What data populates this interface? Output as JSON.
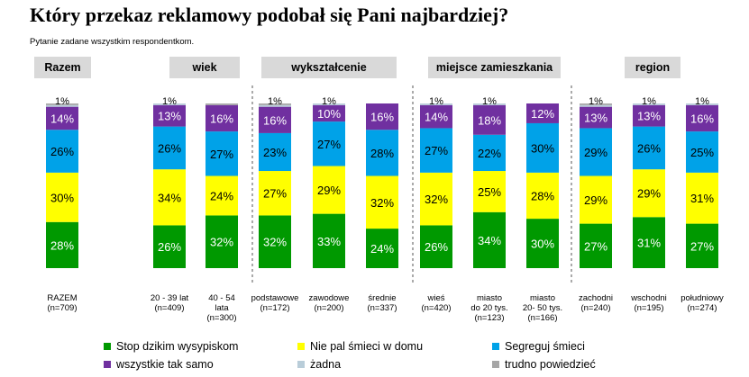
{
  "title": "Który przekaz reklamowy podobał się Pani najbardziej?",
  "subtitle": "Pytanie zadane wszystkim respondentkom.",
  "groups": [
    "Razem",
    "wiek",
    "wykształcenie",
    "miejsce zamieszkania",
    "region"
  ],
  "colors": {
    "stop": "#009900",
    "nie_pal": "#ffff00",
    "segreguj": "#00a2e8",
    "wszystkie": "#7030a0",
    "zadna": "#b9cdd9",
    "trudno": "#a6a6a6"
  },
  "chart_data": {
    "type": "bar",
    "stacked": true,
    "categories": [
      "RAZEM (n=709)",
      "20 - 39 lat (n=409)",
      "40 - 54 lata (n=300)",
      "podstawowe (n=172)",
      "zawodowe (n=200)",
      "średnie (n=337)",
      "wieś (n=420)",
      "miasto do 20 tys. (n=123)",
      "miasto 20- 50 tys. (n=166)",
      "zachodni (n=240)",
      "wschodni (n=195)",
      "południowy (n=274)"
    ],
    "category_lines": [
      [
        "RAZEM",
        "(n=709)"
      ],
      [
        "20 - 39 lat",
        "(n=409)"
      ],
      [
        "40 - 54",
        "lata",
        "(n=300)"
      ],
      [
        "podstawowe",
        "(n=172)"
      ],
      [
        "zawodowe",
        "(n=200)"
      ],
      [
        "średnie",
        "(n=337)"
      ],
      [
        "wieś",
        "(n=420)"
      ],
      [
        "miasto",
        "do 20 tys.",
        "(n=123)"
      ],
      [
        "miasto",
        "20- 50 tys.",
        "(n=166)"
      ],
      [
        "zachodni",
        "(n=240)"
      ],
      [
        "wschodni",
        "(n=195)"
      ],
      [
        "południowy",
        "(n=274)"
      ]
    ],
    "series": [
      {
        "name": "Stop dzikim wysypiskom",
        "key": "stop",
        "values": [
          28,
          26,
          32,
          32,
          33,
          24,
          26,
          34,
          30,
          27,
          31,
          27
        ]
      },
      {
        "name": "Nie pal śmieci w domu",
        "key": "nie_pal",
        "values": [
          30,
          34,
          24,
          27,
          29,
          32,
          32,
          25,
          28,
          29,
          29,
          31
        ]
      },
      {
        "name": "Segreguj śmieci",
        "key": "segreguj",
        "values": [
          26,
          26,
          27,
          23,
          27,
          28,
          27,
          22,
          30,
          29,
          26,
          25
        ]
      },
      {
        "name": "wszystkie tak samo",
        "key": "wszystkie",
        "values": [
          14,
          13,
          16,
          16,
          10,
          16,
          14,
          18,
          12,
          13,
          13,
          16
        ]
      },
      {
        "name": "żadna",
        "key": "zadna",
        "values": [
          1,
          1,
          0,
          1,
          1,
          0,
          1,
          1,
          0,
          1,
          1,
          1
        ]
      },
      {
        "name": "trudno powiedzieć",
        "key": "trudno",
        "values": [
          1,
          0,
          1,
          1,
          0,
          0,
          0,
          0,
          0,
          1,
          0,
          0
        ]
      }
    ],
    "top_labels": [
      "1%",
      "1%",
      "",
      "1%",
      "1%",
      "",
      "1%",
      "1%",
      "",
      "1%",
      "1%",
      "1%"
    ],
    "ylim": [
      0,
      100
    ],
    "xlabel": "",
    "ylabel": "",
    "grid": false,
    "legend_position": "bottom"
  }
}
